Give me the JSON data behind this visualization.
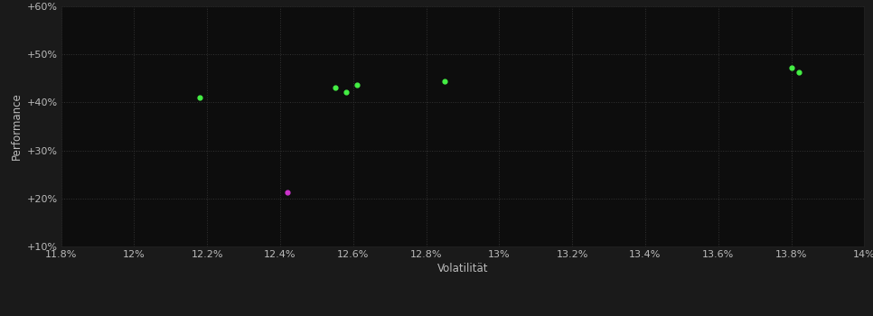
{
  "background_color": "#1a1a1a",
  "plot_bg_color": "#0d0d0d",
  "grid_color": "#333333",
  "text_color": "#bbbbbb",
  "xlabel": "Volatilität",
  "ylabel": "Performance",
  "xlim": [
    0.118,
    0.14
  ],
  "ylim": [
    0.1,
    0.6
  ],
  "xticks": [
    0.118,
    0.12,
    0.122,
    0.124,
    0.126,
    0.128,
    0.13,
    0.132,
    0.134,
    0.136,
    0.138,
    0.14
  ],
  "yticks": [
    0.1,
    0.2,
    0.3,
    0.4,
    0.5,
    0.6
  ],
  "ytick_labels": [
    "+10%",
    "+20%",
    "+30%",
    "+40%",
    "+50%",
    "+60%"
  ],
  "xtick_labels": [
    "11.8%",
    "12%",
    "12.2%",
    "12.4%",
    "12.6%",
    "12.8%",
    "13%",
    "13.2%",
    "13.4%",
    "13.6%",
    "13.8%",
    "14%"
  ],
  "green_points": [
    [
      0.1218,
      0.411
    ],
    [
      0.1255,
      0.43
    ],
    [
      0.1258,
      0.422
    ],
    [
      0.1261,
      0.436
    ],
    [
      0.1285,
      0.444
    ],
    [
      0.138,
      0.472
    ],
    [
      0.1382,
      0.462
    ]
  ],
  "magenta_points": [
    [
      0.1242,
      0.213
    ]
  ],
  "point_size": 12,
  "green_color": "#44ee44",
  "magenta_color": "#cc33cc"
}
